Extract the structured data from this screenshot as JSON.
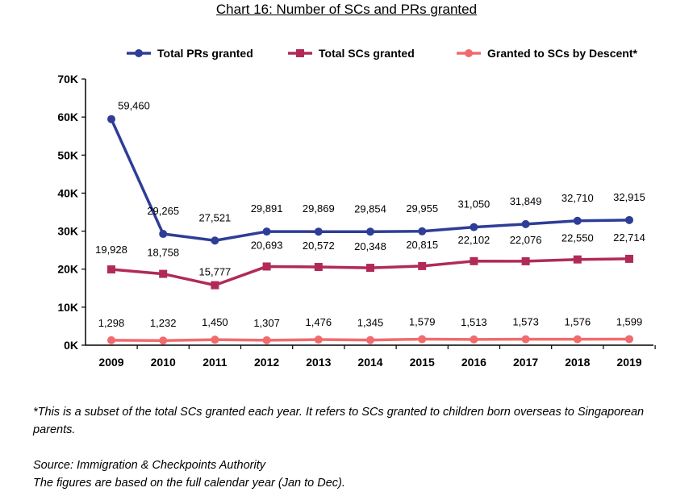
{
  "chart_title": "Chart 16: Number of SCs and PRs granted",
  "footnote": "*This is a subset of the total SCs granted each year. It refers to SCs granted to children born overseas to Singaporean parents.",
  "source": "Source: Immigration & Checkpoints Authority",
  "note": "The figures are based on the full calendar year (Jan to Dec).",
  "chart_data": {
    "type": "line",
    "title": "Chart 16: Number of SCs and PRs granted",
    "xlabel": "",
    "ylabel": "",
    "categories": [
      "2009",
      "2010",
      "2011",
      "2012",
      "2013",
      "2014",
      "2015",
      "2016",
      "2017",
      "2018",
      "2019"
    ],
    "ylim": [
      0,
      70000
    ],
    "yticks": [
      0,
      10000,
      20000,
      30000,
      40000,
      50000,
      60000,
      70000
    ],
    "ytick_labels": [
      "0K",
      "10K",
      "20K",
      "30K",
      "40K",
      "50K",
      "60K",
      "70K"
    ],
    "grid": false,
    "legend_position": "top",
    "series": [
      {
        "name": "Total PRs granted",
        "color": "#2e3d96",
        "marker": "circle",
        "values": [
          59460,
          29265,
          27521,
          29891,
          29869,
          29854,
          29955,
          31050,
          31849,
          32710,
          32915
        ],
        "labels": [
          "59,460",
          "29,265",
          "27,521",
          "29,891",
          "29,869",
          "29,854",
          "29,955",
          "31,050",
          "31,849",
          "32,710",
          "32,915"
        ]
      },
      {
        "name": "Total SCs granted",
        "color": "#b12a57",
        "marker": "square",
        "values": [
          19928,
          18758,
          15777,
          20693,
          20572,
          20348,
          20815,
          22102,
          22076,
          22550,
          22714
        ],
        "labels": [
          "19,928",
          "18,758",
          "15,777",
          "20,693",
          "20,572",
          "20,348",
          "20,815",
          "22,102",
          "22,076",
          "22,550",
          "22,714"
        ]
      },
      {
        "name": "Granted to SCs by Descent*",
        "color": "#f06b6e",
        "marker": "circle",
        "values": [
          1298,
          1232,
          1450,
          1307,
          1476,
          1345,
          1579,
          1513,
          1573,
          1576,
          1599
        ],
        "labels": [
          "1,298",
          "1,232",
          "1,450",
          "1,307",
          "1,476",
          "1,345",
          "1,579",
          "1,513",
          "1,573",
          "1,576",
          "1,599"
        ]
      }
    ]
  }
}
